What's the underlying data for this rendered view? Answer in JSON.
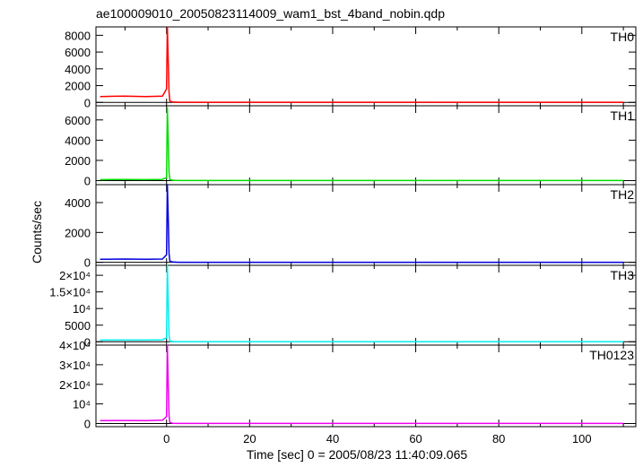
{
  "chart_data": {
    "type": "line",
    "title": "ae100009010_20050823114009_wam1_bst_4band_nobin.qdp",
    "xlabel": "Time [sec] 0 = 2005/08/23 11:40:09.065",
    "ylabel": "Counts/sec",
    "xlim": [
      -17,
      113
    ],
    "xticks": [
      0,
      20,
      40,
      60,
      80,
      100
    ],
    "grid": false,
    "panels": [
      {
        "name": "TH0",
        "color": "#ff0000",
        "ylim": [
          -400,
          9000
        ],
        "yticks": [
          {
            "v": 0,
            "label": "0"
          },
          {
            "v": 2000,
            "label": "2000"
          },
          {
            "v": 4000,
            "label": "4000"
          },
          {
            "v": 6000,
            "label": "6000"
          },
          {
            "v": 8000,
            "label": "8000"
          }
        ],
        "series": {
          "x": [
            -16,
            -10,
            -5,
            -1,
            0,
            0.2,
            0.4,
            0.6,
            0.8,
            1.5,
            3,
            110
          ],
          "y": [
            700,
            750,
            700,
            750,
            1600,
            9000,
            5000,
            1200,
            150,
            60,
            20,
            20
          ]
        }
      },
      {
        "name": "TH1",
        "color": "#00dd00",
        "ylim": [
          -400,
          7400
        ],
        "yticks": [
          {
            "v": 0,
            "label": "0"
          },
          {
            "v": 2000,
            "label": "2000"
          },
          {
            "v": 4000,
            "label": "4000"
          },
          {
            "v": 6000,
            "label": "6000"
          }
        ],
        "series": {
          "x": [
            -16,
            -10,
            -5,
            -1,
            0,
            0.2,
            0.4,
            0.6,
            0.8,
            1.5,
            3,
            110
          ],
          "y": [
            100,
            110,
            100,
            120,
            300,
            7200,
            4000,
            800,
            100,
            30,
            10,
            10
          ]
        }
      },
      {
        "name": "TH2",
        "color": "#0000dd",
        "ylim": [
          -200,
          5200
        ],
        "yticks": [
          {
            "v": 0,
            "label": "0"
          },
          {
            "v": 2000,
            "label": "2000"
          },
          {
            "v": 4000,
            "label": "4000"
          }
        ],
        "series": {
          "x": [
            -16,
            -10,
            -5,
            -1,
            0,
            0.2,
            0.4,
            0.6,
            0.8,
            1.5,
            3,
            110
          ],
          "y": [
            200,
            220,
            200,
            220,
            500,
            5200,
            3000,
            600,
            80,
            20,
            5,
            5
          ]
        }
      },
      {
        "name": "TH3",
        "color": "#00eeee",
        "ylim": [
          -1000,
          23000
        ],
        "yticks": [
          {
            "v": 0,
            "label": "0"
          },
          {
            "v": 5000,
            "label": "5000"
          },
          {
            "v": 10000,
            "label": "10⁴"
          },
          {
            "v": 15000,
            "label": "1.5×10⁴"
          },
          {
            "v": 20000,
            "label": "2×10⁴"
          }
        ],
        "series": {
          "x": [
            -16,
            -10,
            -5,
            -1,
            0,
            0.2,
            0.4,
            0.6,
            0.8,
            1.5,
            3,
            110
          ],
          "y": [
            500,
            520,
            500,
            600,
            1200,
            23000,
            12000,
            2000,
            200,
            50,
            10,
            10
          ]
        }
      },
      {
        "name": "TH0123",
        "color": "#ee00ee",
        "ylim": [
          -1600,
          40000
        ],
        "yticks": [
          {
            "v": 0,
            "label": "0"
          },
          {
            "v": 10000,
            "label": "10⁴"
          },
          {
            "v": 20000,
            "label": "2×10⁴"
          },
          {
            "v": 30000,
            "label": "3×10⁴"
          },
          {
            "v": 40000,
            "label": "4×10⁴"
          }
        ],
        "series": {
          "x": [
            -16,
            -10,
            -5,
            -1,
            0,
            0.2,
            0.4,
            0.6,
            0.8,
            1.5,
            3,
            110
          ],
          "y": [
            1500,
            1550,
            1500,
            1700,
            3500,
            40000,
            20000,
            4000,
            500,
            150,
            40,
            40
          ]
        }
      }
    ]
  }
}
